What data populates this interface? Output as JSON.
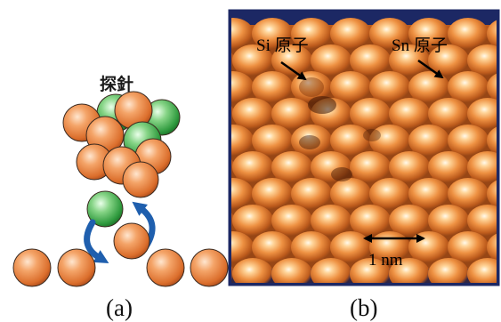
{
  "panel_a": {
    "probe_label": "探針",
    "caption": "(a)"
  },
  "panel_b": {
    "si_label": "Si 原子",
    "sn_label": "Sn 原子",
    "scale_label": "1 nm",
    "caption": "(b)"
  },
  "colors": {
    "atom_orange": "#e8843f",
    "atom_green": "#3fa84a",
    "arrow_blue": "#1f5fae",
    "frame_navy": "#1c2864",
    "surface_orange": "#b85a1e"
  }
}
